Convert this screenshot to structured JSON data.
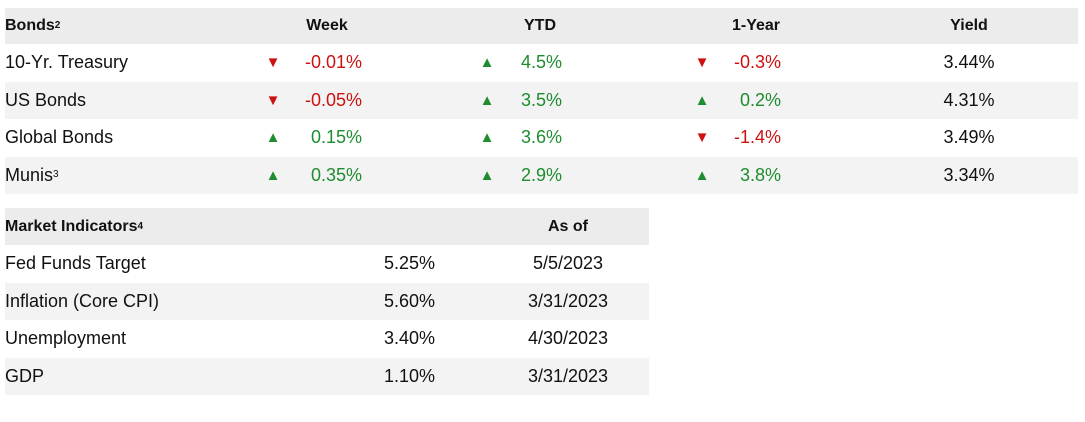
{
  "bonds": {
    "title": "Bonds",
    "title_sup": "2",
    "columns": [
      "Week",
      "YTD",
      "1-Year",
      "Yield"
    ],
    "rows": [
      {
        "name": "10-Yr. Treasury",
        "sup": "",
        "week": {
          "dir": "down",
          "value": "-0.01%"
        },
        "ytd": {
          "dir": "up",
          "value": "4.5%"
        },
        "year": {
          "dir": "down",
          "value": "-0.3%"
        },
        "yield": "3.44%"
      },
      {
        "name": "US Bonds",
        "sup": "",
        "week": {
          "dir": "down",
          "value": "-0.05%"
        },
        "ytd": {
          "dir": "up",
          "value": "3.5%"
        },
        "year": {
          "dir": "up",
          "value": "0.2%"
        },
        "yield": "4.31%"
      },
      {
        "name": "Global Bonds",
        "sup": "",
        "week": {
          "dir": "up",
          "value": "0.15%"
        },
        "ytd": {
          "dir": "up",
          "value": "3.6%"
        },
        "year": {
          "dir": "down",
          "value": "-1.4%"
        },
        "yield": "3.49%"
      },
      {
        "name": "Munis",
        "sup": "3",
        "week": {
          "dir": "up",
          "value": "0.35%"
        },
        "ytd": {
          "dir": "up",
          "value": "2.9%"
        },
        "year": {
          "dir": "up",
          "value": "3.8%"
        },
        "yield": "3.34%"
      }
    ]
  },
  "market": {
    "title": "Market Indicators",
    "title_sup": "4",
    "as_of_label": "As of",
    "rows": [
      {
        "name": "Fed Funds Target",
        "value": "5.25%",
        "as_of": "5/5/2023"
      },
      {
        "name": "Inflation (Core CPI)",
        "value": "5.60%",
        "as_of": "3/31/2023"
      },
      {
        "name": "Unemployment",
        "value": "3.40%",
        "as_of": "4/30/2023"
      },
      {
        "name": "GDP",
        "value": "1.10%",
        "as_of": "3/31/2023"
      }
    ]
  },
  "colors": {
    "up": "#1e8c2f",
    "down": "#cc1111"
  },
  "icons": {
    "up": "triangle-up-icon",
    "down": "triangle-down-icon"
  }
}
